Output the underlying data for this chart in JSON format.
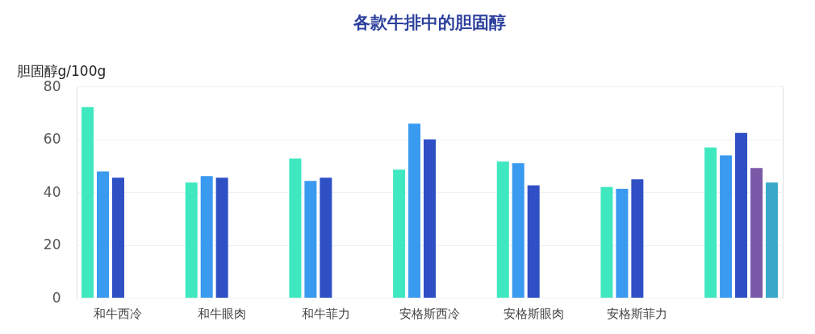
{
  "chart_data": {
    "type": "bar",
    "title": "各款牛排中的胆固醇",
    "ylabel": "胆固醇g/100g",
    "categories": [
      "和牛西冷",
      "和牛眼肉",
      "和牛菲力",
      "安格斯西冷",
      "安格斯眼肉",
      "安格斯菲力",
      null
    ],
    "series": [
      {
        "color": "#40e8c0",
        "values": [
          72.1,
          43.6,
          52.7,
          48.5,
          51.5,
          41.9,
          56.9
        ]
      },
      {
        "color": "#3a9af0",
        "values": [
          47.8,
          46.0,
          44.2,
          65.9,
          50.9,
          41.2,
          53.9
        ]
      },
      {
        "color": "#2f4fc4",
        "values": [
          45.4,
          45.4,
          45.4,
          59.9,
          42.5,
          44.8,
          62.4
        ]
      },
      {
        "color": "#7a5aa8",
        "values": [
          null,
          null,
          null,
          null,
          null,
          null,
          49.1
        ]
      },
      {
        "color": "#3aa8c8",
        "values": [
          null,
          null,
          null,
          null,
          null,
          null,
          43.6
        ]
      }
    ],
    "ylim": [
      0,
      80
    ],
    "yticks": [
      0,
      20,
      40,
      60,
      80
    ],
    "grid": "y",
    "legend": false
  }
}
